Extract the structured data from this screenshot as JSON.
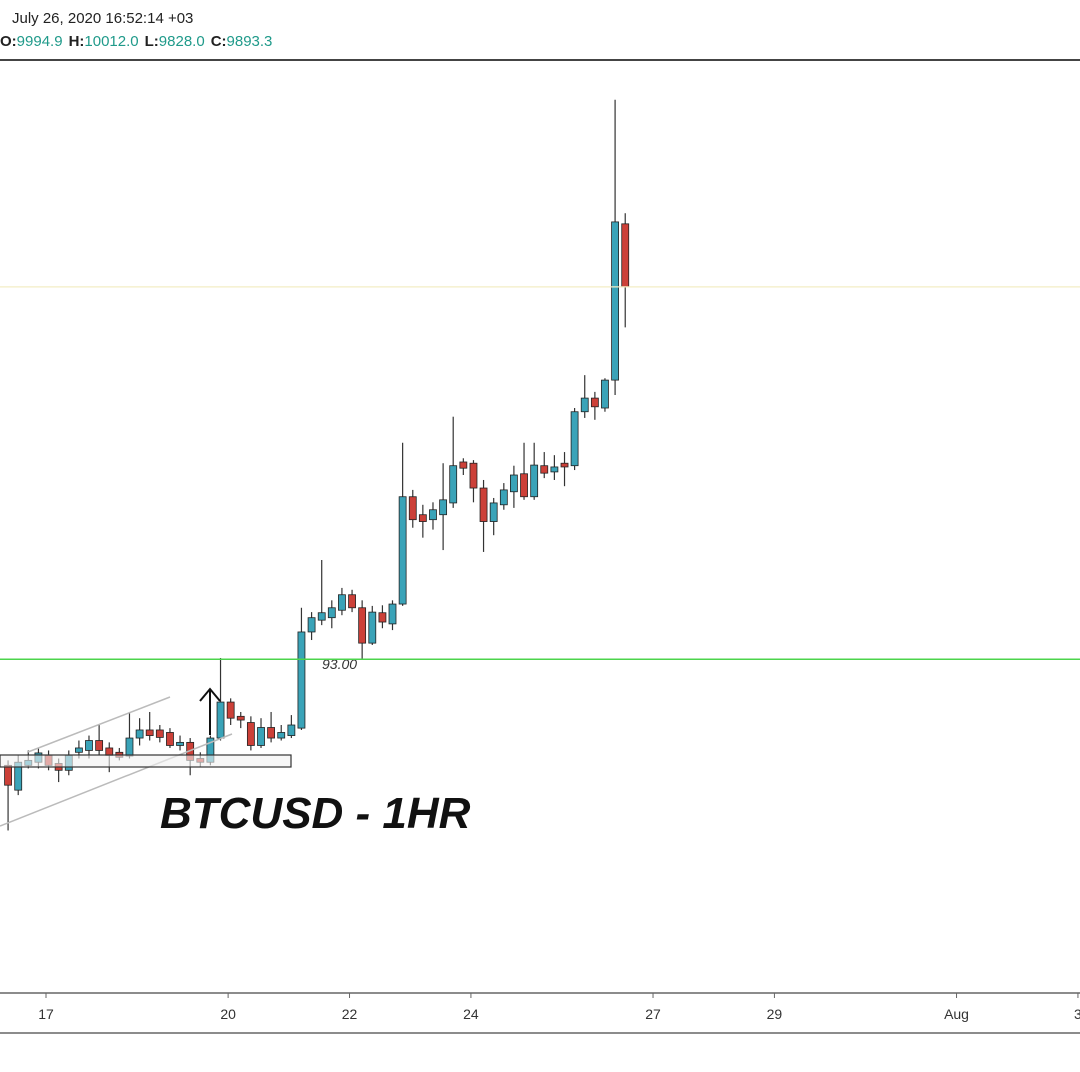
{
  "chart_data": {
    "type": "candlestick",
    "header": {
      "date": "July 26, 2020 16:52:14 +03",
      "ohlc": [
        {
          "label": "O:",
          "value": "9994.9"
        },
        {
          "label": "H:",
          "value": "10012.0"
        },
        {
          "label": "L:",
          "value": "9828.0"
        },
        {
          "label": "C:",
          "value": "9893.3"
        }
      ]
    },
    "annotations": [
      {
        "text": "93.00"
      },
      {
        "text": "BTCUSD - 1HR"
      }
    ],
    "level_line": {
      "value": 9293,
      "color": "#4cd44c"
    },
    "up_color": "#3aa3b8",
    "down_color": "#cc4038",
    "last_price_color": "#f3eec6",
    "xlim": [
      16.242,
      34.034
    ],
    "ylim": [
      8755,
      10259
    ],
    "xticks": [
      17,
      20,
      22,
      24,
      27,
      29,
      {
        "value": 32,
        "label": "Aug"
      },
      {
        "value": 34,
        "label": "3"
      }
    ],
    "x": [
      16.375,
      16.542,
      16.708,
      16.875,
      17.042,
      17.208,
      17.375,
      17.542,
      17.708,
      17.875,
      18.042,
      18.208,
      18.375,
      18.542,
      18.708,
      18.875,
      19.042,
      19.208,
      19.375,
      19.542,
      19.708,
      19.875,
      20.042,
      20.208,
      20.375,
      20.542,
      20.708,
      20.875,
      21.042,
      21.208,
      21.375,
      21.542,
      21.708,
      21.875,
      22.042,
      22.208,
      22.375,
      22.542,
      22.708,
      22.875,
      23.042,
      23.208,
      23.375,
      23.542,
      23.708,
      23.875,
      24.042,
      24.208,
      24.375,
      24.542,
      24.708,
      24.875,
      25.042,
      25.208,
      25.375,
      25.542,
      25.708,
      25.875,
      26.042,
      26.208,
      26.375,
      26.542
    ],
    "open": [
      9122,
      9082,
      9122,
      9127,
      9138,
      9125,
      9114,
      9143,
      9146,
      9162,
      9150,
      9143,
      9137,
      9166,
      9179,
      9179,
      9175,
      9154,
      9159,
      9133,
      9127,
      9166,
      9224,
      9201,
      9191,
      9154,
      9183,
      9166,
      9170,
      9182,
      9337,
      9356,
      9360,
      9372,
      9397,
      9376,
      9319,
      9368,
      9350,
      9382,
      9555,
      9526,
      9518,
      9526,
      9545,
      9611,
      9609,
      9569,
      9515,
      9542,
      9563,
      9592,
      9555,
      9605,
      9595,
      9609,
      9605,
      9692,
      9714,
      9698,
      9743,
      9994.9
    ],
    "high": [
      9130,
      9138,
      9146,
      9150,
      9146,
      9133,
      9146,
      9162,
      9170,
      9187,
      9159,
      9150,
      9208,
      9198,
      9208,
      9187,
      9182,
      9170,
      9166,
      9143,
      9170,
      9295,
      9230,
      9208,
      9201,
      9198,
      9208,
      9187,
      9203,
      9376,
      9369,
      9453,
      9388,
      9408,
      9405,
      9388,
      9379,
      9380,
      9388,
      9642,
      9566,
      9542,
      9546,
      9609,
      9684,
      9617,
      9614,
      9582,
      9553,
      9577,
      9605,
      9642,
      9642,
      9627,
      9622,
      9627,
      9698,
      9751,
      9724,
      9746,
      10195,
      10012
    ],
    "low": [
      9017,
      9074,
      9117,
      9117,
      9114,
      9095,
      9106,
      9133,
      9133,
      9138,
      9111,
      9130,
      9133,
      9154,
      9162,
      9159,
      9150,
      9146,
      9106,
      9120,
      9122,
      9162,
      9187,
      9182,
      9146,
      9150,
      9159,
      9162,
      9166,
      9179,
      9324,
      9348,
      9343,
      9364,
      9369,
      9292,
      9316,
      9343,
      9340,
      9379,
      9505,
      9489,
      9502,
      9469,
      9537,
      9590,
      9546,
      9466,
      9493,
      9534,
      9537,
      9550,
      9550,
      9585,
      9582,
      9572,
      9598,
      9682,
      9679,
      9692,
      9719,
      9828
    ],
    "close": [
      9090,
      9127,
      9130,
      9142,
      9122,
      9114,
      9138,
      9150,
      9162,
      9146,
      9138,
      9135,
      9166,
      9179,
      9170,
      9167,
      9154,
      9159,
      9130,
      9127,
      9166,
      9224,
      9198,
      9195,
      9154,
      9183,
      9166,
      9175,
      9187,
      9337,
      9360,
      9368,
      9376,
      9397,
      9376,
      9319,
      9369,
      9353,
      9382,
      9555,
      9518,
      9515,
      9534,
      9550,
      9605,
      9601,
      9569,
      9515,
      9545,
      9566,
      9590,
      9555,
      9606,
      9593,
      9603,
      9603,
      9692,
      9714,
      9700,
      9743,
      9998,
      9893.3
    ]
  }
}
